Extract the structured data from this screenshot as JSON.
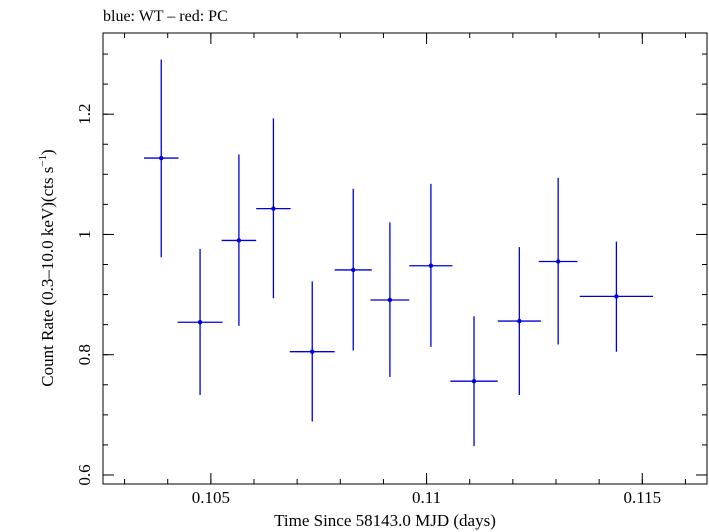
{
  "chart_data": {
    "type": "scatter",
    "title": "blue: WT – red: PC",
    "xlabel": "Time Since 58143.0 MJD (days)",
    "ylabel_main": "Count Rate (0.3–10.0 keV)(cts s",
    "ylabel_sup": "−1",
    "ylabel_end": ")",
    "xlim": [
      0.1025,
      0.1165
    ],
    "ylim": [
      0.585,
      1.335
    ],
    "grid": false,
    "x_ticks": [
      {
        "value": 0.105,
        "label": "0.105"
      },
      {
        "value": 0.11,
        "label": "0.11"
      },
      {
        "value": 0.115,
        "label": "0.115"
      }
    ],
    "x_minor_step": 0.001,
    "y_ticks": [
      {
        "value": 0.6,
        "label": "0.6"
      },
      {
        "value": 0.8,
        "label": "0.8"
      },
      {
        "value": 1.0,
        "label": "1"
      },
      {
        "value": 1.2,
        "label": "1.2"
      }
    ],
    "y_minor_step": 0.05,
    "series": [
      {
        "color": "#0000dd",
        "points": [
          {
            "x": 0.10385,
            "y": 1.127,
            "xerr": 0.0004,
            "ylo": 0.962,
            "yhi": 1.291
          },
          {
            "x": 0.10475,
            "y": 0.854,
            "xerr": 0.00052,
            "ylo": 0.733,
            "yhi": 0.976
          },
          {
            "x": 0.10565,
            "y": 0.99,
            "xerr": 0.0004,
            "ylo": 0.848,
            "yhi": 1.133
          },
          {
            "x": 0.10645,
            "y": 1.043,
            "xerr": 0.0004,
            "ylo": 0.894,
            "yhi": 1.193
          },
          {
            "x": 0.10735,
            "y": 0.805,
            "xerr": 0.00052,
            "ylo": 0.689,
            "yhi": 0.922
          },
          {
            "x": 0.1083,
            "y": 0.941,
            "xerr": 0.00043,
            "ylo": 0.807,
            "yhi": 1.076
          },
          {
            "x": 0.10915,
            "y": 0.891,
            "xerr": 0.00045,
            "ylo": 0.763,
            "yhi": 1.02
          },
          {
            "x": 0.1101,
            "y": 0.948,
            "xerr": 0.0005,
            "ylo": 0.813,
            "yhi": 1.084
          },
          {
            "x": 0.1111,
            "y": 0.756,
            "xerr": 0.00055,
            "ylo": 0.648,
            "yhi": 0.864
          },
          {
            "x": 0.11215,
            "y": 0.856,
            "xerr": 0.0005,
            "ylo": 0.733,
            "yhi": 0.979
          },
          {
            "x": 0.11305,
            "y": 0.955,
            "xerr": 0.00045,
            "ylo": 0.817,
            "yhi": 1.094
          },
          {
            "x": 0.1144,
            "y": 0.897,
            "xerr": 0.00085,
            "ylo": 0.805,
            "yhi": 0.988
          }
        ]
      }
    ]
  }
}
